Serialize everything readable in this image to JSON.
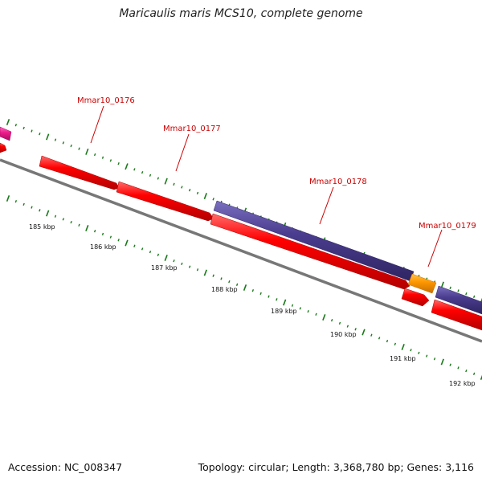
{
  "title": "Maricaulis maris MCS10, complete genome",
  "footer": {
    "accession_text": "Accession: NC_008347",
    "summary_text": "Topology: circular; Length: 3,368,780 bp; Genes: 3,116"
  },
  "colors": {
    "background": "#ffffff",
    "backbone": "#808080",
    "tick": "#1a7a1a",
    "gene_red": "#ff0000",
    "gene_purple": "#4b3d8f",
    "gene_orange": "#ff9900",
    "gene_magenta": "#ee1c8c",
    "label": "#cc0000"
  },
  "scale_labels": [
    "185 kbp",
    "186 kbp",
    "187 kbp",
    "188 kbp",
    "189 kbp",
    "190 kbp",
    "191 kbp",
    "192 kbp"
  ],
  "gene_labels": [
    "Mmar10_0176",
    "Mmar10_0177",
    "Mmar10_0178",
    "Mmar10_0179"
  ]
}
